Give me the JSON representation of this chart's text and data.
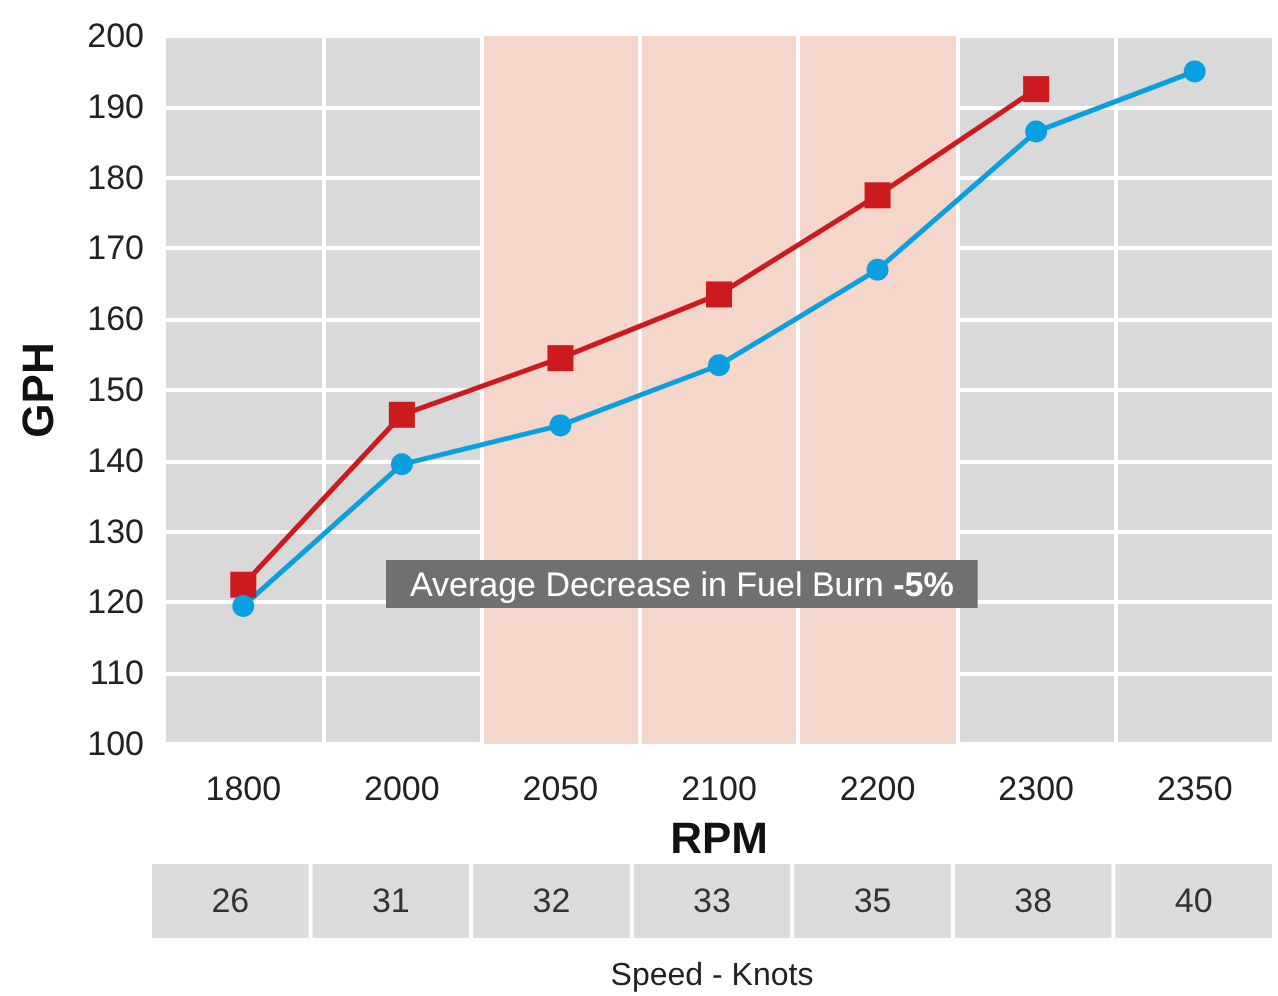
{
  "chart_data": {
    "type": "line",
    "ylabel": "GPH",
    "xlabel": "RPM",
    "categories": [
      "1800",
      "2000",
      "2050",
      "2100",
      "2200",
      "2300",
      "2350"
    ],
    "series": [
      {
        "color": "#cc1a1f",
        "marker": "square",
        "values": [
          122.5,
          146.5,
          154.5,
          163.5,
          177.5,
          192.5,
          null
        ]
      },
      {
        "color": "#0a9fe0",
        "marker": "circle",
        "values": [
          119.5,
          139.5,
          145,
          153.5,
          167,
          186.5,
          195
        ]
      }
    ],
    "ylim": [
      100,
      200
    ],
    "yticks": [
      100,
      110,
      120,
      130,
      140,
      150,
      160,
      170,
      180,
      190,
      200
    ],
    "grid": true,
    "line_style": "solid",
    "bands": [
      {
        "axis": "x",
        "from": "2050",
        "to": "2200",
        "color": "#f5d6cb"
      }
    ],
    "annotations": [
      "Average Decrease in Fuel Burn -5%",
      "Speed - Knots",
      "26",
      "31",
      "32",
      "33",
      "35",
      "38",
      "40"
    ]
  }
}
